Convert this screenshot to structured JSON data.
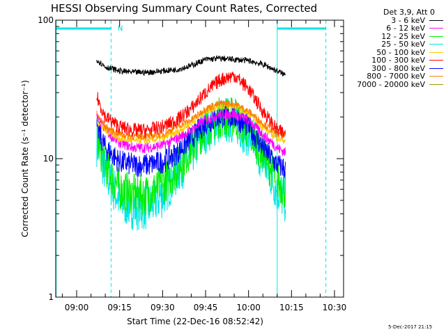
{
  "chart_data": {
    "type": "line",
    "title": "HESSI Observing Summary Count Rates, Corrected",
    "xlabel": "Start Time (22-Dec-16 08:52:42)",
    "ylabel": "Corrected Count Rate (s⁻¹ detector⁻¹)",
    "y_scale": "log",
    "ylim": [
      1,
      100
    ],
    "y_ticks": [
      "1",
      "10",
      "100"
    ],
    "x_ticks": [
      "09:00",
      "09:15",
      "09:30",
      "09:45",
      "10:00",
      "10:15",
      "10:30"
    ],
    "xlim": [
      "08:52:42",
      "10:33:10"
    ],
    "grid": false,
    "legend_position": "top-right outside",
    "legend_header": "Det 3,9, Att 0",
    "series": [
      {
        "name": "3 - 6 keV",
        "color": "#000000",
        "x": [
          "09:07",
          "09:10",
          "09:15",
          "09:20",
          "09:25",
          "09:30",
          "09:35",
          "09:40",
          "09:45",
          "09:50",
          "09:55",
          "10:00",
          "10:05",
          "10:10",
          "10:13"
        ],
        "values": [
          52,
          46,
          43,
          42,
          42,
          43,
          44,
          47,
          52,
          53,
          52,
          51,
          48,
          43,
          40
        ]
      },
      {
        "name": "6 - 12 keV",
        "color": "#ff00ff",
        "x": [
          "09:07",
          "09:10",
          "09:15",
          "09:20",
          "09:25",
          "09:30",
          "09:35",
          "09:40",
          "09:45",
          "09:50",
          "09:55",
          "10:00",
          "10:05",
          "10:10",
          "10:13"
        ],
        "values": [
          20,
          16,
          13,
          12,
          12,
          12.5,
          14,
          16,
          19,
          21,
          21,
          19,
          15,
          12,
          11
        ]
      },
      {
        "name": "12 - 25 keV",
        "color": "#00ee00",
        "x": [
          "09:07",
          "09:10",
          "09:15",
          "09:20",
          "09:25",
          "09:30",
          "09:35",
          "09:40",
          "09:45",
          "09:50",
          "09:55",
          "10:00",
          "10:05",
          "10:10",
          "10:13"
        ],
        "values": [
          14,
          9,
          6,
          5.5,
          5.5,
          6.5,
          8.5,
          12,
          17,
          20,
          20,
          16,
          11,
          7,
          6
        ]
      },
      {
        "name": "25 - 50 keV",
        "color": "#00e5e5",
        "x": [
          "09:07",
          "09:10",
          "09:15",
          "09:20",
          "09:25",
          "09:30",
          "09:35",
          "09:40",
          "09:45",
          "09:50",
          "09:55",
          "10:00",
          "10:05",
          "10:10",
          "10:13"
        ],
        "values": [
          13,
          8,
          5,
          4.5,
          4.5,
          5.5,
          8,
          11,
          16,
          19,
          19,
          15,
          10,
          6,
          5
        ]
      },
      {
        "name": "50 - 100 keV",
        "color": "#ffcc00",
        "x": [
          "09:07",
          "09:10",
          "09:15",
          "09:20",
          "09:25",
          "09:30",
          "09:35",
          "09:40",
          "09:45",
          "09:50",
          "09:55",
          "10:00",
          "10:05",
          "10:10",
          "10:13"
        ],
        "values": [
          19,
          16,
          14,
          13.5,
          13.5,
          14,
          15.5,
          18,
          22,
          24,
          24,
          21,
          17,
          14,
          13.5
        ]
      },
      {
        "name": "100 - 300 keV",
        "color": "#ff0000",
        "x": [
          "09:07",
          "09:10",
          "09:15",
          "09:20",
          "09:25",
          "09:30",
          "09:35",
          "09:40",
          "09:45",
          "09:50",
          "09:55",
          "10:00",
          "10:05",
          "10:10",
          "10:13"
        ],
        "values": [
          28,
          20,
          17,
          16,
          16,
          17,
          19,
          23,
          30,
          37,
          40,
          32,
          22,
          16,
          15
        ]
      },
      {
        "name": "300 - 800 keV",
        "color": "#0000ff",
        "x": [
          "09:07",
          "09:10",
          "09:15",
          "09:20",
          "09:25",
          "09:30",
          "09:35",
          "09:40",
          "09:45",
          "09:50",
          "09:55",
          "10:00",
          "10:05",
          "10:10",
          "10:13"
        ],
        "values": [
          17,
          12,
          9.5,
          9,
          9,
          9.5,
          11,
          14,
          18,
          20,
          20,
          17,
          12,
          9,
          8.5
        ]
      },
      {
        "name": "800 - 7000 keV",
        "color": "#ff7f00",
        "x": [
          "09:07",
          "09:10",
          "09:15",
          "09:20",
          "09:25",
          "09:30",
          "09:35",
          "09:40",
          "09:45",
          "09:50",
          "09:55",
          "10:00",
          "10:05",
          "10:10",
          "10:13"
        ],
        "values": [
          21,
          17,
          15,
          14.5,
          14.5,
          15,
          17,
          19,
          23,
          25,
          25,
          22,
          18,
          15,
          14.5
        ]
      },
      {
        "name": "7000 - 20000 keV",
        "color": "#999900",
        "x": [],
        "values": []
      }
    ],
    "annotations": [
      {
        "text": "N",
        "x": "09:15",
        "type": "night marker"
      }
    ],
    "spacecraft_night": [
      [
        "08:52:42",
        "09:12"
      ],
      [
        "10:10",
        "10:27"
      ]
    ],
    "vertical_markers": [
      {
        "x": "08:52:50",
        "style": "solid",
        "color": "#00e5e5"
      },
      {
        "x": "09:12",
        "style": "dashed",
        "color": "#00e5e5"
      },
      {
        "x": "10:10",
        "style": "solid",
        "color": "#00e5e5"
      },
      {
        "x": "10:27",
        "style": "dashed",
        "color": "#00e5e5"
      }
    ]
  },
  "footer_timestamp": "5-Dec-2017 21:15"
}
